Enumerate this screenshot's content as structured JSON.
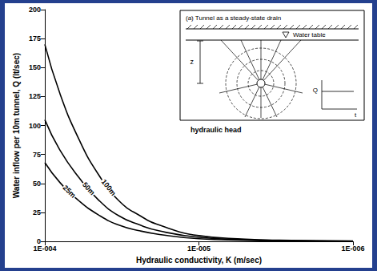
{
  "chart_data": {
    "type": "line",
    "xlabel": "Hydraulic conductivity, K (m/sec)",
    "ylabel": "Water inflow per 10m tunnel, Q (lt/sec)",
    "x": [
      0.0001,
      8e-05,
      6e-05,
      4.5e-05,
      3.3e-05,
      2.4e-05,
      1.8e-05,
      1e-05,
      5e-06,
      3e-06,
      1e-06
    ],
    "series": [
      {
        "name": "100m",
        "color": "#000000",
        "values": [
          170,
          128,
          88,
          58,
          35,
          22,
          14,
          5,
          2,
          1,
          0.3
        ]
      },
      {
        "name": "50m",
        "color": "#000000",
        "values": [
          105,
          79,
          55,
          36,
          22,
          14,
          9,
          3.5,
          1.5,
          0.8,
          0.2
        ]
      },
      {
        "name": "25m",
        "color": "#000000",
        "values": [
          68,
          51,
          35,
          23,
          14,
          9,
          6,
          2.3,
          1,
          0.5,
          0.1
        ]
      }
    ],
    "xlim": [
      0.0001,
      1e-06
    ],
    "xticks": [
      {
        "value": 0.0001,
        "label": "1E-004"
      },
      {
        "value": 1e-05,
        "label": "1E-005"
      },
      {
        "value": 1e-06,
        "label": "1E-006"
      }
    ],
    "ylim": [
      0,
      200
    ],
    "yticks": [
      0,
      25,
      50,
      75,
      100,
      125,
      150,
      175,
      200
    ],
    "log": "x",
    "grid": false,
    "annotations": [
      "hydraulic head",
      "(a) Tunnel as a steady-state drain",
      "Water table",
      "z",
      "Q",
      "t"
    ]
  }
}
